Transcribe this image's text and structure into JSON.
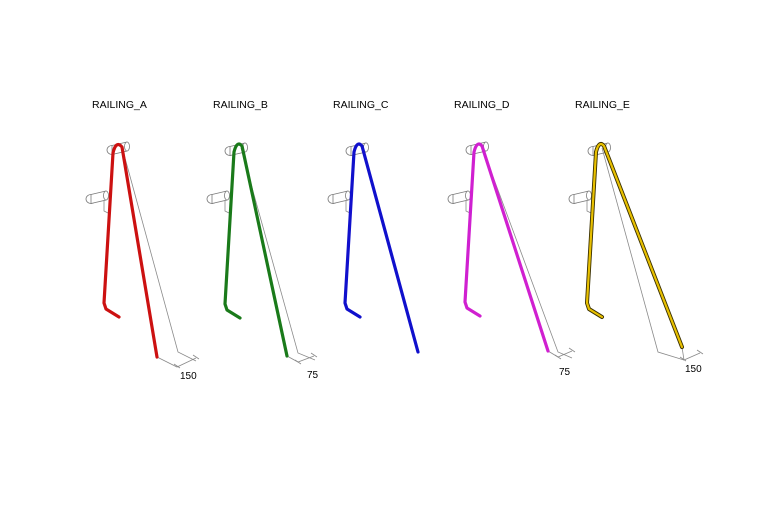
{
  "railings": [
    {
      "label": "RAILING_A",
      "color": "#cc1111",
      "dimension": "150"
    },
    {
      "label": "RAILING_B",
      "color": "#1a7a1a",
      "dimension": "75"
    },
    {
      "label": "RAILING_C",
      "color": "#1010cc",
      "dimension": ""
    },
    {
      "label": "RAILING_D",
      "color": "#d020d0",
      "dimension": "75"
    },
    {
      "label": "RAILING_E",
      "color": "#e8c000",
      "dimension": "150"
    }
  ],
  "icons": {
    "bracket": "cylinder-bracket-icon"
  }
}
